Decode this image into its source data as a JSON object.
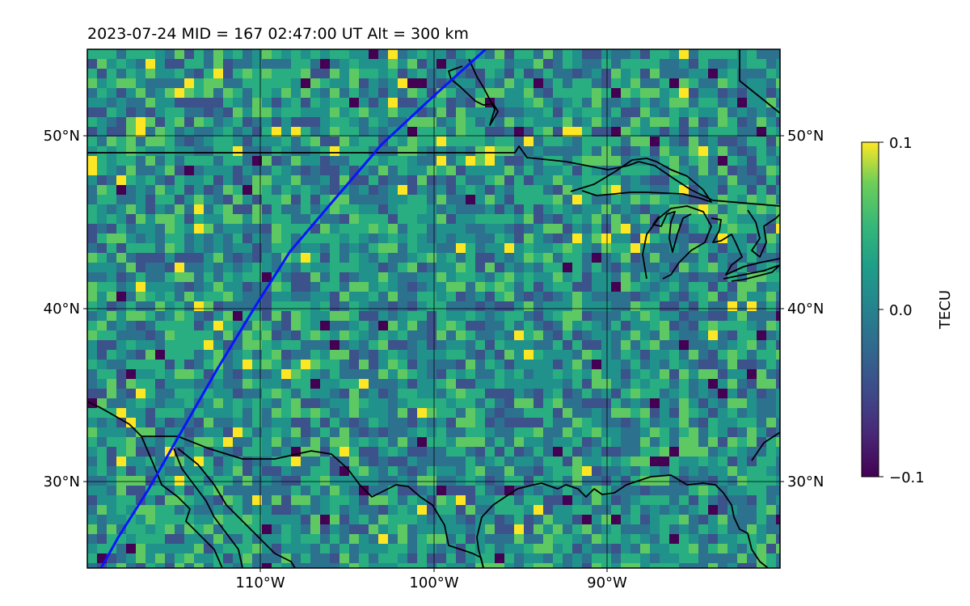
{
  "title": "2023-07-24  MID = 167    02:47:00  UT  Alt = 300 km",
  "map": {
    "lat_ticks": [
      "50°N",
      "40°N",
      "30°N"
    ],
    "lon_ticks": [
      "110°W",
      "100°W",
      "90°W"
    ],
    "lon_range": [
      -120,
      -80
    ],
    "lat_range": [
      25,
      55
    ]
  },
  "colorbar": {
    "label": "TECU",
    "ticks": [
      "0.1",
      "0.0",
      "−0.1"
    ],
    "range": [
      -0.1,
      0.1
    ],
    "colormap": "viridis"
  },
  "track": {
    "color": "#0a14ff",
    "points_lonlat": [
      [
        -119.2,
        25.0
      ],
      [
        -118.2,
        26.8
      ],
      [
        -116.5,
        29.5
      ],
      [
        -114.5,
        33.0
      ],
      [
        -112.5,
        36.5
      ],
      [
        -110.2,
        40.3
      ],
      [
        -108.3,
        43.3
      ],
      [
        -106.0,
        46.0
      ],
      [
        -103.0,
        49.5
      ],
      [
        -100.0,
        52.3
      ],
      [
        -97.0,
        55.0
      ]
    ]
  }
}
